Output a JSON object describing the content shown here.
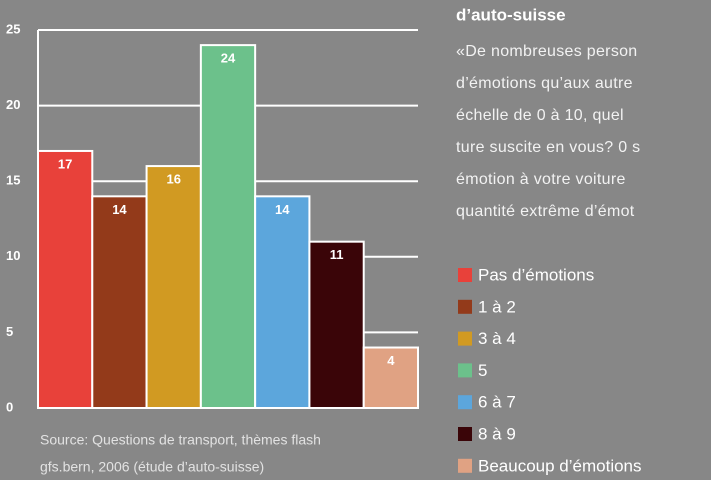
{
  "chart_data": {
    "type": "bar",
    "title": "d’auto-suisse",
    "text_lines": [
      "«De nombreuses person",
      "d’émotions qu’aux autre",
      "échelle de 0 à 10, quel",
      "ture suscite en vous? 0 s",
      "émotion à votre voiture",
      "quantité extrême d’émot"
    ],
    "categories": [
      "Pas d’émotions",
      "1 à 2",
      "3 à 4",
      "5",
      "6 à 7",
      "8 à 9",
      "Beaucoup d’émotions"
    ],
    "values": [
      17,
      14,
      16,
      24,
      14,
      11,
      4
    ],
    "colors": [
      "#e8413a",
      "#933a1a",
      "#d19a22",
      "#6cc18b",
      "#5ca6dc",
      "#3a0508",
      "#e0a283"
    ],
    "ylim": [
      0,
      25
    ],
    "yticks": [
      0,
      5,
      10,
      15,
      20,
      25
    ],
    "grid": true,
    "source": [
      "Source: Questions de transport, thèmes flash",
      "gfs.bern, 2006 (étude d’auto-suisse)"
    ]
  }
}
